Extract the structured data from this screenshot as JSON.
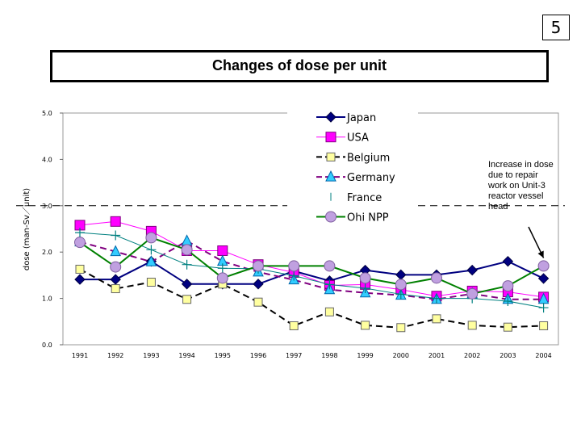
{
  "page_number": "5",
  "title": "Changes of dose per unit",
  "annotation": [
    "Increase in dose",
    "due to repair",
    "work on Unit-3",
    "reactor vessel",
    "head"
  ],
  "chart_data": {
    "type": "line",
    "title": "",
    "xlabel": "",
    "ylabel": "dose (man-Sv／unit)",
    "ylim": [
      0,
      5
    ],
    "yticks": [
      "0.0",
      "1.0",
      "2.0",
      "3.0",
      "4.0",
      "5.0"
    ],
    "reference_line": 3.0,
    "categories": [
      "1991",
      "1992",
      "1993",
      "1994",
      "1995",
      "1996",
      "1997",
      "1998",
      "1999",
      "2000",
      "2001",
      "2002",
      "2003",
      "2004"
    ],
    "legend_position": "top-center",
    "series": [
      {
        "name": "Japan",
        "color": "#000080",
        "marker": "diamond",
        "dash": "",
        "width": 2,
        "values": [
          1.41,
          1.41,
          1.8,
          1.31,
          1.31,
          1.31,
          1.59,
          1.38,
          1.61,
          1.51,
          1.51,
          1.61,
          1.8,
          1.43
        ]
      },
      {
        "name": "USA",
        "color": "#ff00ff",
        "marker": "square",
        "dash": "",
        "width": 1,
        "values": [
          2.58,
          2.66,
          2.45,
          2.03,
          2.03,
          1.73,
          1.56,
          1.28,
          1.3,
          1.19,
          1.05,
          1.16,
          1.14,
          1.03
        ]
      },
      {
        "name": "Belgium",
        "color": "#000000",
        "marker": "square-light",
        "dash": "8,5",
        "width": 2,
        "values": [
          1.63,
          1.21,
          1.35,
          0.98,
          1.31,
          0.92,
          0.41,
          0.71,
          0.42,
          0.37,
          0.56,
          0.42,
          0.38,
          0.41
        ]
      },
      {
        "name": "Germany",
        "color": "#800080",
        "marker": "triangle",
        "dash": "8,5",
        "width": 2,
        "values": [
          2.22,
          2.01,
          1.79,
          2.24,
          1.8,
          1.57,
          1.4,
          1.19,
          1.12,
          1.07,
          0.98,
          1.1,
          0.98,
          0.98
        ]
      },
      {
        "name": "France",
        "color": "#008080",
        "marker": "plus",
        "dash": "",
        "width": 1,
        "values": [
          2.42,
          2.36,
          2.05,
          1.73,
          1.65,
          1.64,
          1.49,
          1.3,
          1.22,
          1.09,
          1.0,
          1.0,
          0.94,
          0.8
        ]
      },
      {
        "name": "Ohi NPP",
        "color": "#008000",
        "marker": "circle",
        "dash": "",
        "width": 2,
        "values": [
          2.21,
          1.68,
          2.31,
          2.05,
          1.44,
          1.7,
          1.7,
          1.7,
          1.44,
          1.3,
          1.44,
          1.1,
          1.27,
          1.7
        ]
      }
    ]
  }
}
